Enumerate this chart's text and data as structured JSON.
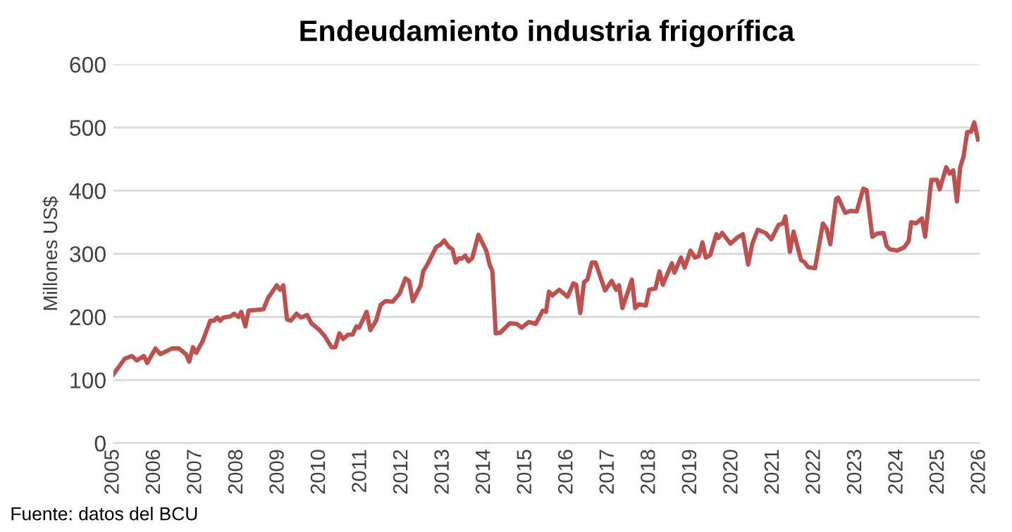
{
  "chart_data": {
    "type": "line",
    "title": "Endeudamiento industria frigorífica",
    "ylabel": "Millones US$",
    "annotations": [
      "Fuente: datos del BCU"
    ],
    "xlim": [
      2005,
      2026
    ],
    "xticks": [
      2005,
      2006,
      2007,
      2008,
      2009,
      2010,
      2011,
      2012,
      2013,
      2014,
      2015,
      2016,
      2017,
      2018,
      2019,
      2020,
      2021,
      2022,
      2023,
      2024,
      2025,
      2026
    ],
    "ylim": [
      0,
      600
    ],
    "yticks": [
      0,
      100,
      200,
      300,
      400,
      500,
      600
    ],
    "grid": "y",
    "marker": "none",
    "line_style": "solid",
    "series": [
      {
        "color": "#c0504d",
        "x": [
          2005.0,
          2005.28,
          2005.45,
          2005.57,
          2005.74,
          2005.82,
          2006.02,
          2006.14,
          2006.42,
          2006.59,
          2006.76,
          2006.84,
          2006.93,
          2007.01,
          2007.16,
          2007.35,
          2007.44,
          2007.52,
          2007.59,
          2007.67,
          2007.84,
          2007.93,
          2008.03,
          2008.1,
          2008.2,
          2008.28,
          2008.64,
          2008.75,
          2008.96,
          2009.04,
          2009.12,
          2009.21,
          2009.3,
          2009.44,
          2009.55,
          2009.7,
          2009.8,
          2010.0,
          2010.12,
          2010.29,
          2010.38,
          2010.48,
          2010.57,
          2010.69,
          2010.8,
          2010.89,
          2010.96,
          2011.14,
          2011.23,
          2011.37,
          2011.48,
          2011.6,
          2011.77,
          2011.94,
          2012.08,
          2012.17,
          2012.26,
          2012.45,
          2012.51,
          2012.62,
          2012.83,
          2012.92,
          2013.02,
          2013.13,
          2013.22,
          2013.3,
          2013.38,
          2013.44,
          2013.53,
          2013.61,
          2013.7,
          2013.85,
          2014.04,
          2014.12,
          2014.19,
          2014.27,
          2014.38,
          2014.61,
          2014.78,
          2014.9,
          2015.07,
          2015.24,
          2015.41,
          2015.49,
          2015.56,
          2015.64,
          2015.81,
          2016.01,
          2016.15,
          2016.22,
          2016.32,
          2016.41,
          2016.49,
          2016.6,
          2016.69,
          2016.92,
          2017.08,
          2017.19,
          2017.26,
          2017.34,
          2017.57,
          2017.65,
          2017.74,
          2017.91,
          2017.99,
          2018.14,
          2018.24,
          2018.32,
          2018.54,
          2018.6,
          2018.76,
          2018.85,
          2018.99,
          2019.1,
          2019.19,
          2019.28,
          2019.36,
          2019.47,
          2019.62,
          2019.67,
          2019.76,
          2019.96,
          2020.13,
          2020.26,
          2020.39,
          2020.49,
          2020.62,
          2020.81,
          2020.95,
          2021.13,
          2021.23,
          2021.29,
          2021.4,
          2021.49,
          2021.67,
          2021.75,
          2021.84,
          2022.01,
          2022.2,
          2022.29,
          2022.38,
          2022.52,
          2022.57,
          2022.74,
          2022.88,
          2023.02,
          2023.18,
          2023.26,
          2023.4,
          2023.51,
          2023.67,
          2023.75,
          2023.83,
          2024.0,
          2024.17,
          2024.28,
          2024.34,
          2024.46,
          2024.6,
          2024.68,
          2024.83,
          2024.97,
          2025.03,
          2025.19,
          2025.27,
          2025.36,
          2025.45,
          2025.53,
          2025.61,
          2025.7,
          2025.79,
          2025.87,
          2025.96
        ],
        "values": [
          109,
          134,
          138,
          131,
          138,
          127,
          150,
          141,
          150,
          150,
          141,
          129,
          152,
          143,
          161,
          194,
          194,
          199,
          194,
          199,
          201,
          205,
          200,
          208,
          185,
          210,
          212,
          230,
          250,
          243,
          250,
          196,
          194,
          205,
          199,
          203,
          190,
          179,
          170,
          152,
          152,
          174,
          165,
          172,
          172,
          185,
          183,
          208,
          179,
          194,
          219,
          225,
          224,
          237,
          261,
          257,
          225,
          250,
          272,
          284,
          311,
          314,
          321,
          311,
          307,
          286,
          293,
          292,
          297,
          288,
          293,
          330,
          305,
          283,
          272,
          174,
          175,
          190,
          189,
          183,
          192,
          189,
          210,
          208,
          240,
          234,
          243,
          232,
          253,
          251,
          206,
          255,
          259,
          286,
          286,
          242,
          257,
          243,
          250,
          214,
          259,
          214,
          220,
          218,
          243,
          245,
          272,
          251,
          285,
          270,
          294,
          278,
          305,
          294,
          296,
          318,
          294,
          298,
          331,
          325,
          333,
          316,
          326,
          331,
          283,
          316,
          338,
          333,
          323,
          346,
          348,
          359,
          303,
          335,
          290,
          287,
          279,
          277,
          348,
          340,
          315,
          387,
          389,
          365,
          368,
          367,
          403,
          401,
          327,
          332,
          333,
          312,
          307,
          305,
          310,
          320,
          350,
          348,
          356,
          327,
          417,
          417,
          402,
          437,
          427,
          432,
          383,
          437,
          454,
          493,
          493,
          508,
          481
        ]
      }
    ]
  }
}
